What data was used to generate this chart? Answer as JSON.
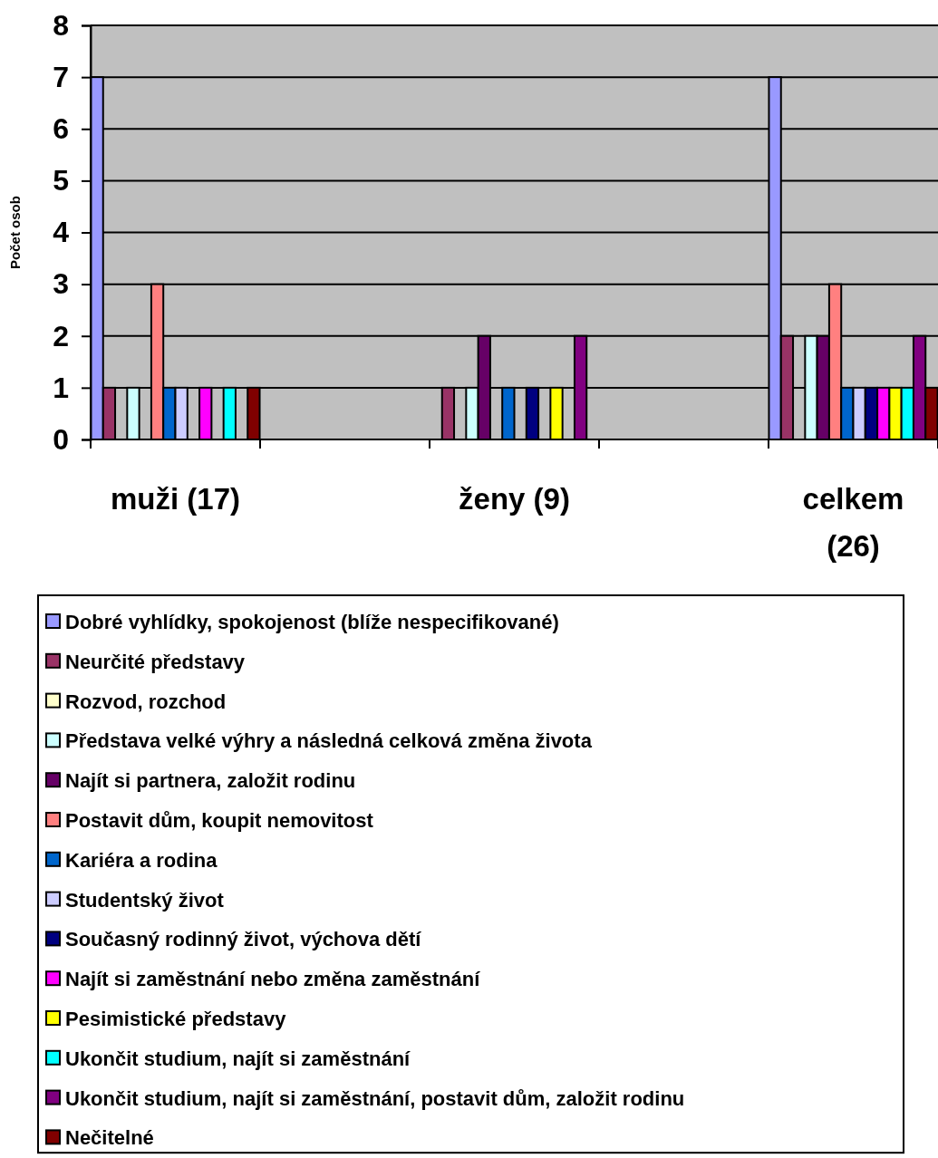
{
  "chart_data": {
    "type": "bar",
    "ylabel": "Počet osob",
    "categories": [
      "muži (17)",
      null,
      "ženy (9)",
      null,
      "celkem (26)"
    ],
    "ylim": [
      0,
      8
    ],
    "yticks": [
      0,
      1,
      2,
      3,
      4,
      5,
      6,
      7,
      8
    ],
    "grid": "y",
    "legend": "bottom",
    "series": [
      {
        "name": "Dobré vyhlídky, spokojenost (blíže nespecifikované)",
        "color": "#9999ff",
        "values": [
          7,
          null,
          0,
          null,
          7
        ]
      },
      {
        "name": "Neurčité představy",
        "color": "#993366",
        "values": [
          1,
          null,
          1,
          null,
          2
        ]
      },
      {
        "name": "Rozvod, rozchod",
        "color": "#ffffcc",
        "values": [
          0,
          null,
          0,
          null,
          0
        ]
      },
      {
        "name": "Představa velké výhry a následná celková změna života",
        "color": "#ccffff",
        "values": [
          1,
          null,
          1,
          null,
          2
        ]
      },
      {
        "name": "Najít si partnera, založit rodinu",
        "color": "#660066",
        "values": [
          0,
          null,
          2,
          null,
          2
        ]
      },
      {
        "name": "Postavit dům, koupit nemovitost",
        "color": "#ff8080",
        "values": [
          3,
          null,
          0,
          null,
          3
        ]
      },
      {
        "name": "Kariéra a rodina",
        "color": "#0066cc",
        "values": [
          1,
          null,
          1,
          null,
          1
        ]
      },
      {
        "name": "Studentský život",
        "color": "#ccccff",
        "values": [
          1,
          null,
          0,
          null,
          1
        ]
      },
      {
        "name": "Současný rodinný život, výchova dětí",
        "color": "#000080",
        "values": [
          0,
          null,
          1,
          null,
          1
        ]
      },
      {
        "name": "Najít si zaměstnání nebo změna zaměstnání",
        "color": "#ff00ff",
        "values": [
          1,
          null,
          0,
          null,
          1
        ]
      },
      {
        "name": "Pesimistické představy",
        "color": "#ffff00",
        "values": [
          0,
          null,
          1,
          null,
          1
        ]
      },
      {
        "name": "Ukončit studium, najít si zaměstnání",
        "color": "#00ffff",
        "values": [
          1,
          null,
          0,
          null,
          1
        ]
      },
      {
        "name": "Ukončit studium, najít si zaměstnání, postavit dům, založit rodinu",
        "color": "#800080",
        "values": [
          0,
          null,
          2,
          null,
          2
        ]
      },
      {
        "name": "Nečitelné",
        "color": "#800000",
        "values": [
          1,
          null,
          0,
          null,
          1
        ]
      }
    ]
  }
}
